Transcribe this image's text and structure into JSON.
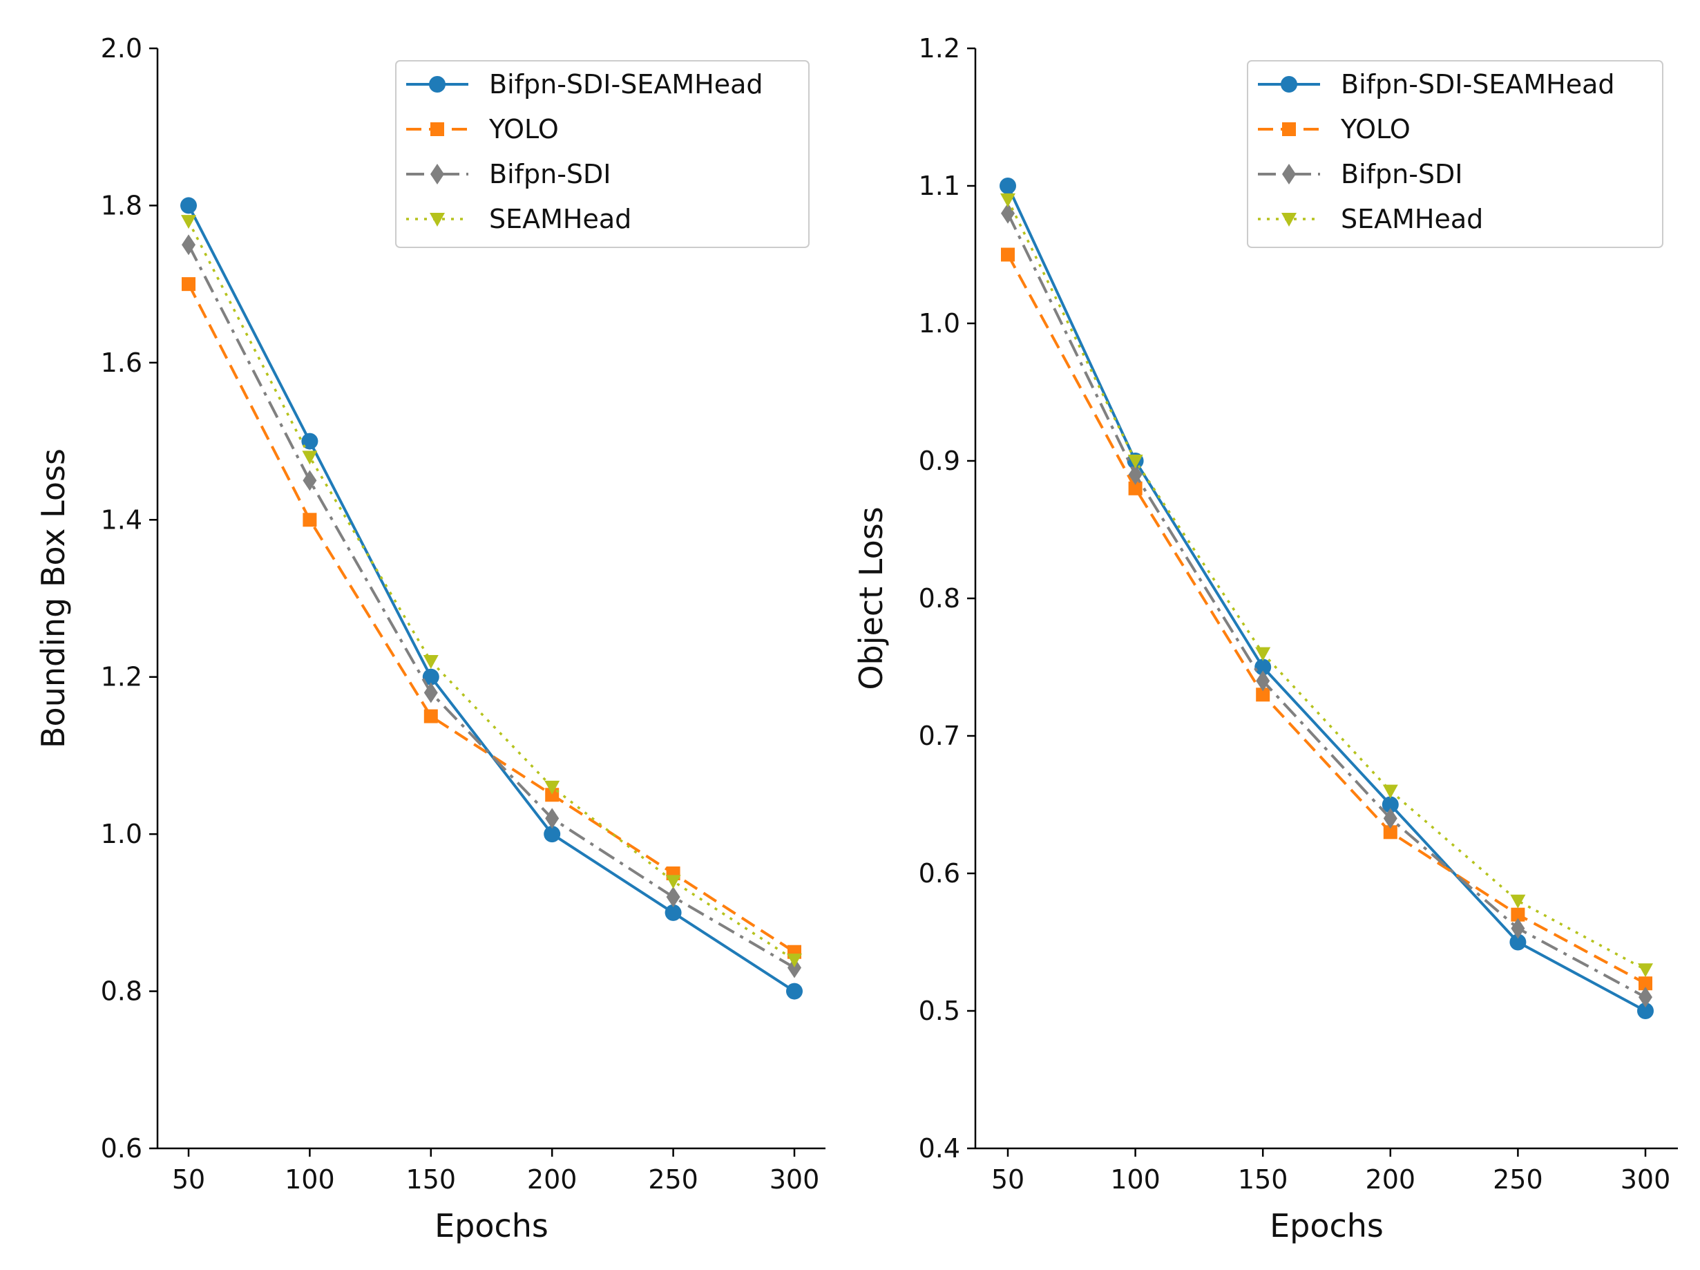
{
  "colors": {
    "Bifpn-SDI-SEAMHead": "#1f7bb8",
    "YOLO": "#ff7f0e",
    "Bifpn-SDI": "#808080",
    "SEAMHead": "#b5c21c"
  },
  "chart_data": [
    {
      "type": "line",
      "xlabel": "Epochs",
      "ylabel": "Bounding Box Loss",
      "x": [
        50,
        100,
        150,
        200,
        250,
        300
      ],
      "xticks": [
        "50",
        "100",
        "150",
        "200",
        "250",
        "300"
      ],
      "yticks": [
        "0.6",
        "0.8",
        "1.0",
        "1.2",
        "1.4",
        "1.6",
        "1.8",
        "2.0"
      ],
      "ylim": [
        0.6,
        2.0
      ],
      "legend_position": "upper-right",
      "grid": false,
      "series": [
        {
          "name": "Bifpn-SDI-SEAMHead",
          "marker": "circle",
          "linestyle": "solid",
          "values": [
            1.8,
            1.5,
            1.2,
            1.0,
            0.9,
            0.8
          ]
        },
        {
          "name": "YOLO",
          "marker": "square",
          "linestyle": "dashed",
          "values": [
            1.7,
            1.4,
            1.15,
            1.05,
            0.95,
            0.85
          ]
        },
        {
          "name": "Bifpn-SDI",
          "marker": "diamond",
          "linestyle": "dashdot",
          "values": [
            1.75,
            1.45,
            1.18,
            1.02,
            0.92,
            0.83
          ]
        },
        {
          "name": "SEAMHead",
          "marker": "triangle-down",
          "linestyle": "dotted",
          "values": [
            1.78,
            1.48,
            1.22,
            1.06,
            0.94,
            0.84
          ]
        }
      ]
    },
    {
      "type": "line",
      "xlabel": "Epochs",
      "ylabel": "Object Loss",
      "x": [
        50,
        100,
        150,
        200,
        250,
        300
      ],
      "xticks": [
        "50",
        "100",
        "150",
        "200",
        "250",
        "300"
      ],
      "yticks": [
        "0.4",
        "0.5",
        "0.6",
        "0.7",
        "0.8",
        "0.9",
        "1.0",
        "1.1",
        "1.2"
      ],
      "ylim": [
        0.4,
        1.2
      ],
      "legend_position": "upper-right",
      "grid": false,
      "series": [
        {
          "name": "Bifpn-SDI-SEAMHead",
          "marker": "circle",
          "linestyle": "solid",
          "values": [
            1.1,
            0.9,
            0.75,
            0.65,
            0.55,
            0.5
          ]
        },
        {
          "name": "YOLO",
          "marker": "square",
          "linestyle": "dashed",
          "values": [
            1.05,
            0.88,
            0.73,
            0.63,
            0.57,
            0.52
          ]
        },
        {
          "name": "Bifpn-SDI",
          "marker": "diamond",
          "linestyle": "dashdot",
          "values": [
            1.08,
            0.89,
            0.74,
            0.64,
            0.56,
            0.51
          ]
        },
        {
          "name": "SEAMHead",
          "marker": "triangle-down",
          "linestyle": "dotted",
          "values": [
            1.09,
            0.9,
            0.76,
            0.66,
            0.58,
            0.53
          ]
        }
      ]
    }
  ]
}
